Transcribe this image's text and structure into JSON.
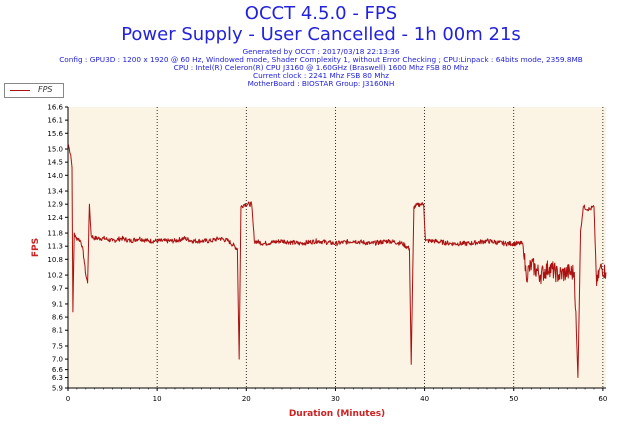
{
  "header": {
    "title": "OCCT 4.5.0 - FPS",
    "subtitle": "Power Supply - User Cancelled - 1h 00m 21s",
    "info_lines": [
      "Generated by OCCT : 2017/03/18 22:13:36",
      "Config : GPU3D : 1200 x 1920 @ 60 Hz, Windowed mode, Shader Complexity 1, without Error Checking ; CPU:Linpack : 64bits mode, 2359.8MB",
      "CPU : Intel(R) Celeron(R) CPU J3160 @ 1.60GHz (Braswell) 1600 Mhz FSB 80 Mhz",
      "Current clock : 2241 Mhz FSB 80 Mhz",
      "MotherBoard : BIOSTAR Group: J3160NH"
    ]
  },
  "legend": {
    "label": "FPS"
  },
  "colors": {
    "title": "#2222dd",
    "axis_label": "#cc2222",
    "plot_bg": "#fbf3e3",
    "series": "#aa1111",
    "grid": "#000000"
  },
  "chart_data": {
    "type": "line",
    "title": "OCCT 4.5.0 - FPS",
    "subtitle": "Power Supply - User Cancelled - 1h 00m 21s",
    "xlabel": "Duration (Minutes)",
    "ylabel": "FPS",
    "xlim": [
      0,
      60.35
    ],
    "ylim": [
      5.9,
      16.6
    ],
    "x_ticks": [
      "0",
      "10",
      "20",
      "30",
      "40",
      "50",
      "60"
    ],
    "y_ticks": [
      "5.9",
      "6.3",
      "6.6",
      "7.0",
      "7.5",
      "8.1",
      "8.6",
      "9.1",
      "9.7",
      "10.2",
      "10.8",
      "11.3",
      "11.8",
      "12.4",
      "12.9",
      "13.4",
      "14.0",
      "14.5",
      "15.0",
      "15.6",
      "16.1",
      "16.6"
    ],
    "grid_x": true,
    "grid_y": false,
    "legend_position": "top-left",
    "series": [
      {
        "name": "FPS",
        "color": "#aa1111",
        "points": [
          [
            0,
            15.2
          ],
          [
            0.15,
            15.0
          ],
          [
            0.3,
            14.8
          ],
          [
            0.45,
            14.3
          ],
          [
            0.55,
            8.8
          ],
          [
            0.7,
            11.8
          ],
          [
            0.9,
            11.6
          ],
          [
            1.1,
            11.6
          ],
          [
            1.4,
            11.5
          ],
          [
            1.6,
            11.3
          ],
          [
            1.8,
            10.8
          ],
          [
            2.0,
            10.2
          ],
          [
            2.2,
            9.9
          ],
          [
            2.4,
            12.9
          ],
          [
            2.6,
            11.7
          ],
          [
            3.0,
            11.6
          ],
          [
            4,
            11.6
          ],
          [
            5,
            11.5
          ],
          [
            6,
            11.6
          ],
          [
            7,
            11.5
          ],
          [
            8,
            11.6
          ],
          [
            9,
            11.5
          ],
          [
            10,
            11.5
          ],
          [
            11,
            11.5
          ],
          [
            12,
            11.5
          ],
          [
            13,
            11.6
          ],
          [
            14,
            11.5
          ],
          [
            15,
            11.5
          ],
          [
            16,
            11.5
          ],
          [
            17,
            11.6
          ],
          [
            18,
            11.5
          ],
          [
            19.0,
            11.2
          ],
          [
            19.2,
            7.0
          ],
          [
            19.4,
            12.8
          ],
          [
            19.8,
            12.9
          ],
          [
            20.6,
            12.9
          ],
          [
            20.9,
            11.5
          ],
          [
            22,
            11.4
          ],
          [
            24,
            11.5
          ],
          [
            26,
            11.4
          ],
          [
            28,
            11.5
          ],
          [
            30,
            11.4
          ],
          [
            32,
            11.5
          ],
          [
            34,
            11.4
          ],
          [
            36,
            11.5
          ],
          [
            37.5,
            11.4
          ],
          [
            38.3,
            11.2
          ],
          [
            38.5,
            6.8
          ],
          [
            38.8,
            12.8
          ],
          [
            39.5,
            12.9
          ],
          [
            39.9,
            12.9
          ],
          [
            40.1,
            11.5
          ],
          [
            41,
            11.5
          ],
          [
            43,
            11.4
          ],
          [
            45,
            11.4
          ],
          [
            47,
            11.5
          ],
          [
            49,
            11.4
          ],
          [
            51,
            11.4
          ],
          [
            51.4,
            10.2
          ],
          [
            52,
            10.6
          ],
          [
            53,
            10.2
          ],
          [
            54,
            10.5
          ],
          [
            55,
            10.2
          ],
          [
            56,
            10.3
          ],
          [
            56.8,
            10.3
          ],
          [
            57.2,
            6.3
          ],
          [
            57.5,
            11.9
          ],
          [
            57.8,
            12.8
          ],
          [
            58.5,
            12.7
          ],
          [
            59.0,
            12.8
          ],
          [
            59.3,
            9.8
          ],
          [
            59.7,
            10.5
          ],
          [
            60.35,
            10.3
          ]
        ]
      }
    ]
  }
}
